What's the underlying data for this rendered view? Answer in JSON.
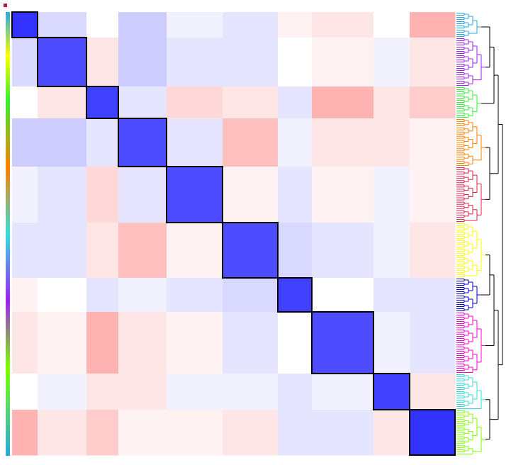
{
  "chart_data": {
    "type": "heatmap",
    "zlim": [
      -1,
      1
    ],
    "colors": [
      "#ff0000",
      "#ffffff",
      "#0000ff"
    ],
    "sizes": [
      36,
      69,
      45,
      68,
      79,
      78,
      48,
      87,
      51,
      64
    ],
    "cluster_colors": [
      "#29a8e0",
      "#a020f0",
      "#33ee33",
      "#ff7f00",
      "#e0204a",
      "#ffff00",
      "#0000cc",
      "#ff00cc",
      "#33dddd",
      "#7fff00"
    ],
    "values": [
      [
        0.8,
        0.15,
        0.0,
        0.2,
        0.05,
        0.1,
        -0.05,
        -0.1,
        0.0,
        -0.3
      ],
      [
        0.15,
        0.7,
        -0.1,
        0.2,
        0.1,
        0.1,
        0.0,
        -0.05,
        0.05,
        -0.1
      ],
      [
        0.0,
        -0.1,
        0.75,
        0.1,
        -0.15,
        -0.1,
        0.1,
        -0.3,
        -0.1,
        -0.2
      ],
      [
        0.2,
        0.2,
        0.1,
        0.7,
        0.1,
        -0.25,
        0.05,
        -0.1,
        -0.1,
        -0.05
      ],
      [
        0.05,
        0.1,
        -0.15,
        0.1,
        0.7,
        -0.05,
        0.1,
        -0.05,
        0.05,
        -0.05
      ],
      [
        0.1,
        0.1,
        -0.1,
        -0.25,
        -0.05,
        0.7,
        0.15,
        0.1,
        0.05,
        -0.1
      ],
      [
        -0.05,
        0.0,
        0.1,
        0.05,
        0.1,
        0.15,
        0.75,
        0.0,
        0.1,
        0.1
      ],
      [
        -0.1,
        -0.05,
        -0.3,
        -0.1,
        -0.05,
        0.1,
        0.0,
        0.7,
        0.05,
        0.1
      ],
      [
        0.0,
        0.05,
        -0.1,
        -0.1,
        0.05,
        0.05,
        0.1,
        0.05,
        0.75,
        -0.1
      ],
      [
        -0.3,
        -0.1,
        -0.2,
        -0.05,
        -0.05,
        -0.1,
        0.1,
        0.1,
        -0.1,
        0.8
      ]
    ]
  }
}
